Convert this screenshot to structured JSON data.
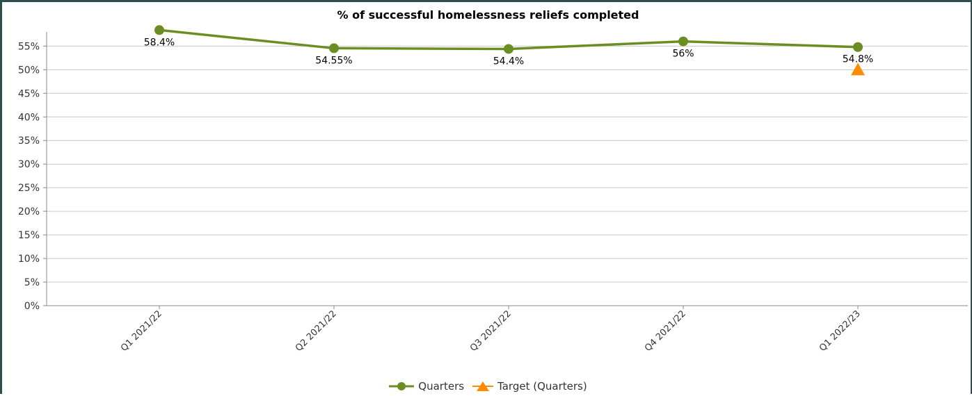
{
  "chart_data": {
    "type": "line",
    "title": "% of successful homelessness reliefs completed",
    "xlabel": "",
    "ylabel": "",
    "categories": [
      "Q1 2021/22",
      "Q2 2021/22",
      "Q3 2021/22",
      "Q4 2021/22",
      "Q1 2022/23"
    ],
    "ylim": [
      0,
      58
    ],
    "yticks": [
      0,
      5,
      10,
      15,
      20,
      25,
      30,
      35,
      40,
      45,
      50,
      55
    ],
    "ytick_labels": [
      "0%",
      "5%",
      "10%",
      "15%",
      "20%",
      "25%",
      "30%",
      "35%",
      "40%",
      "45%",
      "50%",
      "55%"
    ],
    "grid": true,
    "legend": "bottom-center",
    "series": [
      {
        "name": "Quarters",
        "values": [
          58.4,
          54.55,
          54.4,
          56,
          54.8
        ],
        "data_labels": [
          "58.4%",
          "54.55%",
          "54.4%",
          "56%",
          "54.8%"
        ],
        "color": "#6b8e23",
        "marker": "circle"
      },
      {
        "name": "Target (Quarters)",
        "values": [
          null,
          null,
          null,
          null,
          50
        ],
        "color": "#ff8c00",
        "marker": "triangle"
      }
    ]
  }
}
